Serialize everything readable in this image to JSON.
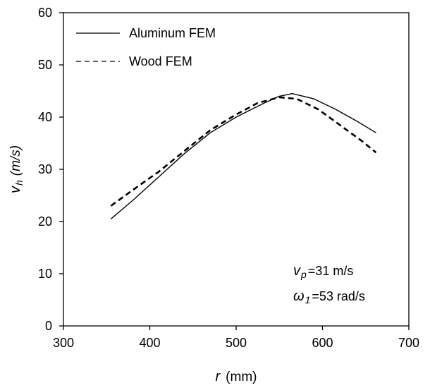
{
  "chart_data": {
    "type": "line",
    "xlabel": {
      "symbol": "r",
      "unit": "(mm)"
    },
    "ylabel": {
      "symbol": "v",
      "subscript": "h",
      "unit": "(m/s)"
    },
    "xlim": [
      300,
      700
    ],
    "ylim": [
      0,
      60
    ],
    "xticks": [
      "300",
      "400",
      "500",
      "600",
      "700"
    ],
    "yticks": [
      "0",
      "10",
      "20",
      "30",
      "40",
      "50",
      "60"
    ],
    "grid": false,
    "legend_position": "top-left",
    "series": [
      {
        "name": "Aluminum FEM",
        "style": "solid",
        "x": [
          355,
          380,
          410,
          440,
          470,
          500,
          530,
          550,
          565,
          590,
          615,
          640,
          662
        ],
        "y": [
          20.5,
          24.0,
          28.5,
          33.0,
          37.0,
          40.0,
          42.5,
          44.0,
          44.5,
          43.5,
          41.5,
          39.2,
          37.0
        ]
      },
      {
        "name": "Wood FEM",
        "style": "dashed",
        "x": [
          355,
          380,
          410,
          440,
          470,
          500,
          525,
          550,
          570,
          595,
          620,
          645,
          662
        ],
        "y": [
          23.0,
          26.0,
          29.5,
          33.5,
          37.5,
          40.5,
          42.7,
          43.8,
          43.5,
          41.5,
          38.5,
          35.5,
          33.2
        ]
      }
    ],
    "annotations": [
      {
        "symbol": "v",
        "subscript": "p",
        "value": "=31 m/s"
      },
      {
        "symbol": "ω",
        "subscript": "1",
        "value": "=53 rad/s"
      }
    ]
  }
}
